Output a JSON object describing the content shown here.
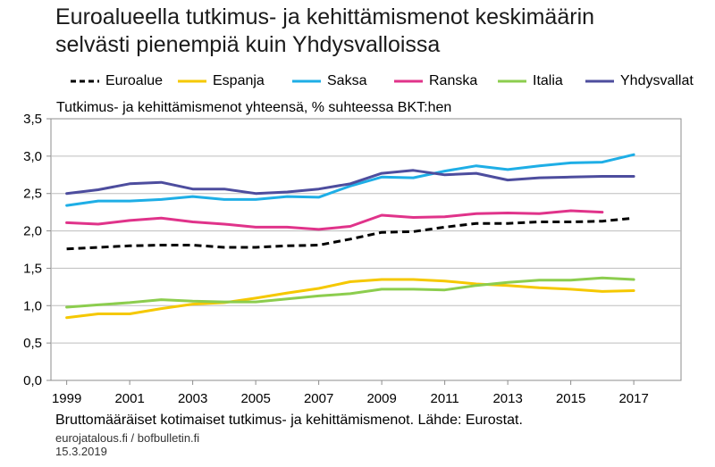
{
  "header": {
    "title_line1": "Euroalueella tutkimus- ja kehittämismenot keskimäärin",
    "title_line2": "selvästi pienempiä kuin Yhdysvalloissa"
  },
  "footer": {
    "source": "Bruttomääräiset kotimaiset tutkimus- ja kehittämismenot. Lähde: Eurostat.",
    "site": "eurojatalous.fi / bofbulletin.fi",
    "date": "15.3.2019"
  },
  "chart_data": {
    "type": "line",
    "subtitle": "Tutkimus- ja kehittämismenot yhteensä, % suhteessa BKT:hen",
    "xlabel": "",
    "ylabel": "",
    "xlim": [
      1998.5,
      2018.5
    ],
    "ylim": [
      0,
      3.5
    ],
    "yticks": [
      0,
      0.5,
      1,
      1.5,
      2,
      2.5,
      3,
      3.5
    ],
    "ytick_labels": [
      "0,0",
      "0,5",
      "1,0",
      "1,5",
      "2,0",
      "2,5",
      "3,0",
      "3,5"
    ],
    "xticks": [
      1999,
      2001,
      2003,
      2005,
      2007,
      2009,
      2011,
      2013,
      2015,
      2017
    ],
    "xtick_labels": [
      "1999",
      "2001",
      "2003",
      "2005",
      "2007",
      "2009",
      "2011",
      "2013",
      "2015",
      "2017"
    ],
    "grid": "horizontal",
    "legend_position": "top",
    "x": [
      1999,
      2000,
      2001,
      2002,
      2003,
      2004,
      2005,
      2006,
      2007,
      2008,
      2009,
      2010,
      2011,
      2012,
      2013,
      2014,
      2015,
      2016,
      2017
    ],
    "series": [
      {
        "name": "Euroalue",
        "color": "#000000",
        "dash": true,
        "values": [
          1.76,
          1.78,
          1.8,
          1.81,
          1.81,
          1.78,
          1.78,
          1.8,
          1.81,
          1.89,
          1.98,
          1.99,
          2.05,
          2.1,
          2.1,
          2.12,
          2.12,
          2.13,
          2.17
        ]
      },
      {
        "name": "Espanja",
        "color": "#f5c800",
        "dash": false,
        "values": [
          0.84,
          0.89,
          0.89,
          0.96,
          1.02,
          1.04,
          1.1,
          1.17,
          1.23,
          1.32,
          1.35,
          1.35,
          1.33,
          1.29,
          1.27,
          1.24,
          1.22,
          1.19,
          1.2
        ]
      },
      {
        "name": "Saksa",
        "color": "#1eaee6",
        "dash": false,
        "values": [
          2.34,
          2.4,
          2.4,
          2.42,
          2.46,
          2.42,
          2.42,
          2.46,
          2.45,
          2.6,
          2.72,
          2.71,
          2.8,
          2.87,
          2.82,
          2.87,
          2.91,
          2.92,
          3.02
        ]
      },
      {
        "name": "Ranska",
        "color": "#e0338a",
        "dash": false,
        "values": [
          2.11,
          2.09,
          2.14,
          2.17,
          2.12,
          2.09,
          2.05,
          2.05,
          2.02,
          2.06,
          2.21,
          2.18,
          2.19,
          2.23,
          2.24,
          2.23,
          2.27,
          2.25,
          null
        ]
      },
      {
        "name": "Italia",
        "color": "#8ccd4e",
        "dash": false,
        "values": [
          0.98,
          1.01,
          1.04,
          1.08,
          1.06,
          1.05,
          1.05,
          1.09,
          1.13,
          1.16,
          1.22,
          1.22,
          1.21,
          1.27,
          1.31,
          1.34,
          1.34,
          1.37,
          1.35
        ]
      },
      {
        "name": "Yhdysvallat",
        "color": "#4d4d9e",
        "dash": false,
        "values": [
          2.5,
          2.55,
          2.63,
          2.65,
          2.56,
          2.56,
          2.5,
          2.52,
          2.56,
          2.63,
          2.77,
          2.81,
          2.75,
          2.77,
          2.68,
          2.71,
          2.72,
          2.73,
          2.73
        ]
      }
    ]
  }
}
